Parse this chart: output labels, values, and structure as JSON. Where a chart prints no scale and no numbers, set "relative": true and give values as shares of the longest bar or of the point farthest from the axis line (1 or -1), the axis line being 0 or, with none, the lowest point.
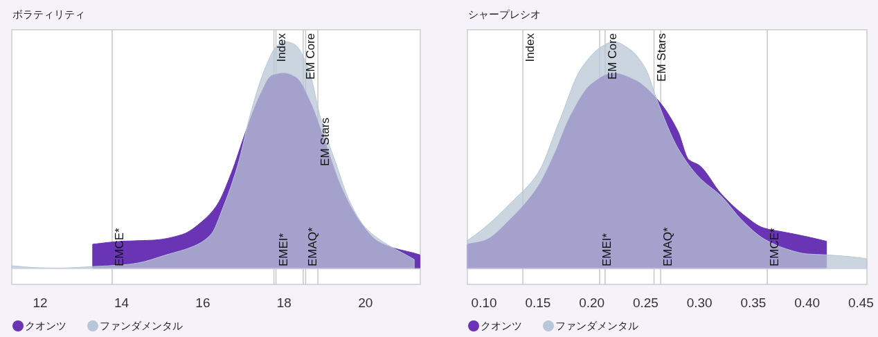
{
  "chart_data": [
    {
      "type": "area",
      "title": "ボラティリティ",
      "relative": true,
      "grid": false,
      "legend": "bottom",
      "xlim": [
        11.3,
        21.35
      ],
      "xticks": [
        12,
        14,
        16,
        18,
        20
      ],
      "series": [
        {
          "name": "クオンツ",
          "color": "#6a35b5",
          "x": [
            13.29,
            14.0,
            14.8,
            15.5,
            16.0,
            16.35,
            16.7,
            17.05,
            17.4,
            17.7,
            18.0,
            18.3,
            18.65,
            19.0,
            19.4,
            19.85,
            20.3,
            20.7,
            21.15,
            21.34
          ],
          "values": [
            0.107,
            0.12,
            0.125,
            0.15,
            0.21,
            0.28,
            0.42,
            0.6,
            0.76,
            0.85,
            0.86,
            0.84,
            0.73,
            0.56,
            0.36,
            0.21,
            0.12,
            0.09,
            0.07,
            0.06
          ]
        },
        {
          "name": "ファンダメンタル",
          "color": "#b8c7d6",
          "x": [
            11.3,
            12.0,
            12.5,
            13.32,
            14.0,
            14.4,
            15.1,
            15.8,
            16.2,
            16.5,
            16.85,
            17.2,
            17.55,
            17.8,
            18.0,
            18.25,
            18.6,
            18.9,
            19.3,
            19.6,
            20.0,
            20.5,
            21.0,
            21.2
          ],
          "values": [
            0.012,
            0.003,
            0.002,
            0.009,
            0.015,
            0.024,
            0.06,
            0.1,
            0.15,
            0.27,
            0.45,
            0.7,
            0.89,
            0.976,
            1.0,
            0.988,
            0.88,
            0.66,
            0.45,
            0.3,
            0.18,
            0.11,
            0.06,
            0.04
          ]
        }
      ],
      "ref_lines": [
        {
          "axis": "x",
          "value": 17.75,
          "label": "Index"
        },
        {
          "axis": "x",
          "value": 18.47,
          "label": "EM Core"
        },
        {
          "axis": "x",
          "value": 18.83,
          "label": "EM Stars"
        },
        {
          "axis": "x",
          "value": 13.77,
          "label": "EMCE*"
        },
        {
          "axis": "x",
          "value": 17.8,
          "label": "EMEI*"
        },
        {
          "axis": "x",
          "value": 18.53,
          "label": "EMAQ*"
        }
      ]
    },
    {
      "type": "area",
      "title": "シャープレシオ",
      "relative": true,
      "grid": false,
      "legend": "bottom",
      "xlim": [
        0.0845,
        0.4555
      ],
      "xticks": [
        {
          "value": 0.1,
          "label": "0.10"
        },
        {
          "value": 0.15,
          "label": "0.15"
        },
        {
          "value": 0.2,
          "label": "0.20"
        },
        {
          "value": 0.25,
          "label": "0.25"
        },
        {
          "value": 0.3,
          "label": "0.30"
        },
        {
          "value": 0.35,
          "label": "0.35"
        },
        {
          "value": 0.4,
          "label": "0.40"
        },
        {
          "value": 0.45,
          "label": "0.45"
        }
      ],
      "series": [
        {
          "name": "クオンツ",
          "color": "#6a35b5",
          "x": [
            0.0845,
            0.1,
            0.125,
            0.15,
            0.165,
            0.18,
            0.2,
            0.22,
            0.24,
            0.26,
            0.28,
            0.29,
            0.3,
            0.32,
            0.34,
            0.36,
            0.38,
            0.4,
            0.418
          ],
          "values": [
            0.107,
            0.122,
            0.22,
            0.36,
            0.5,
            0.67,
            0.814,
            0.86,
            0.83,
            0.75,
            0.605,
            0.48,
            0.454,
            0.33,
            0.24,
            0.178,
            0.159,
            0.14,
            0.12
          ]
        },
        {
          "name": "ファンダメンタル",
          "color": "#b8c7d6",
          "x": [
            0.0845,
            0.1,
            0.125,
            0.15,
            0.17,
            0.19,
            0.21,
            0.22,
            0.235,
            0.25,
            0.26,
            0.28,
            0.3,
            0.32,
            0.34,
            0.36,
            0.38,
            0.4,
            0.418,
            0.44,
            0.4555
          ],
          "values": [
            0.123,
            0.178,
            0.29,
            0.42,
            0.65,
            0.88,
            0.98,
            1.0,
            0.967,
            0.88,
            0.75,
            0.53,
            0.4,
            0.32,
            0.21,
            0.13,
            0.087,
            0.064,
            0.06,
            0.052,
            0.043
          ]
        }
      ],
      "ref_lines": [
        {
          "axis": "x",
          "value": 0.136,
          "label": "Index"
        },
        {
          "axis": "x",
          "value": 0.2124,
          "label": "EM Core"
        },
        {
          "axis": "x",
          "value": 0.2578,
          "label": "EM Stars"
        },
        {
          "axis": "x",
          "value": 0.363,
          "label": "EMCE*"
        },
        {
          "axis": "x",
          "value": 0.2073,
          "label": "EMEI*"
        },
        {
          "axis": "x",
          "value": 0.264,
          "label": "EMAQ*"
        }
      ]
    }
  ]
}
